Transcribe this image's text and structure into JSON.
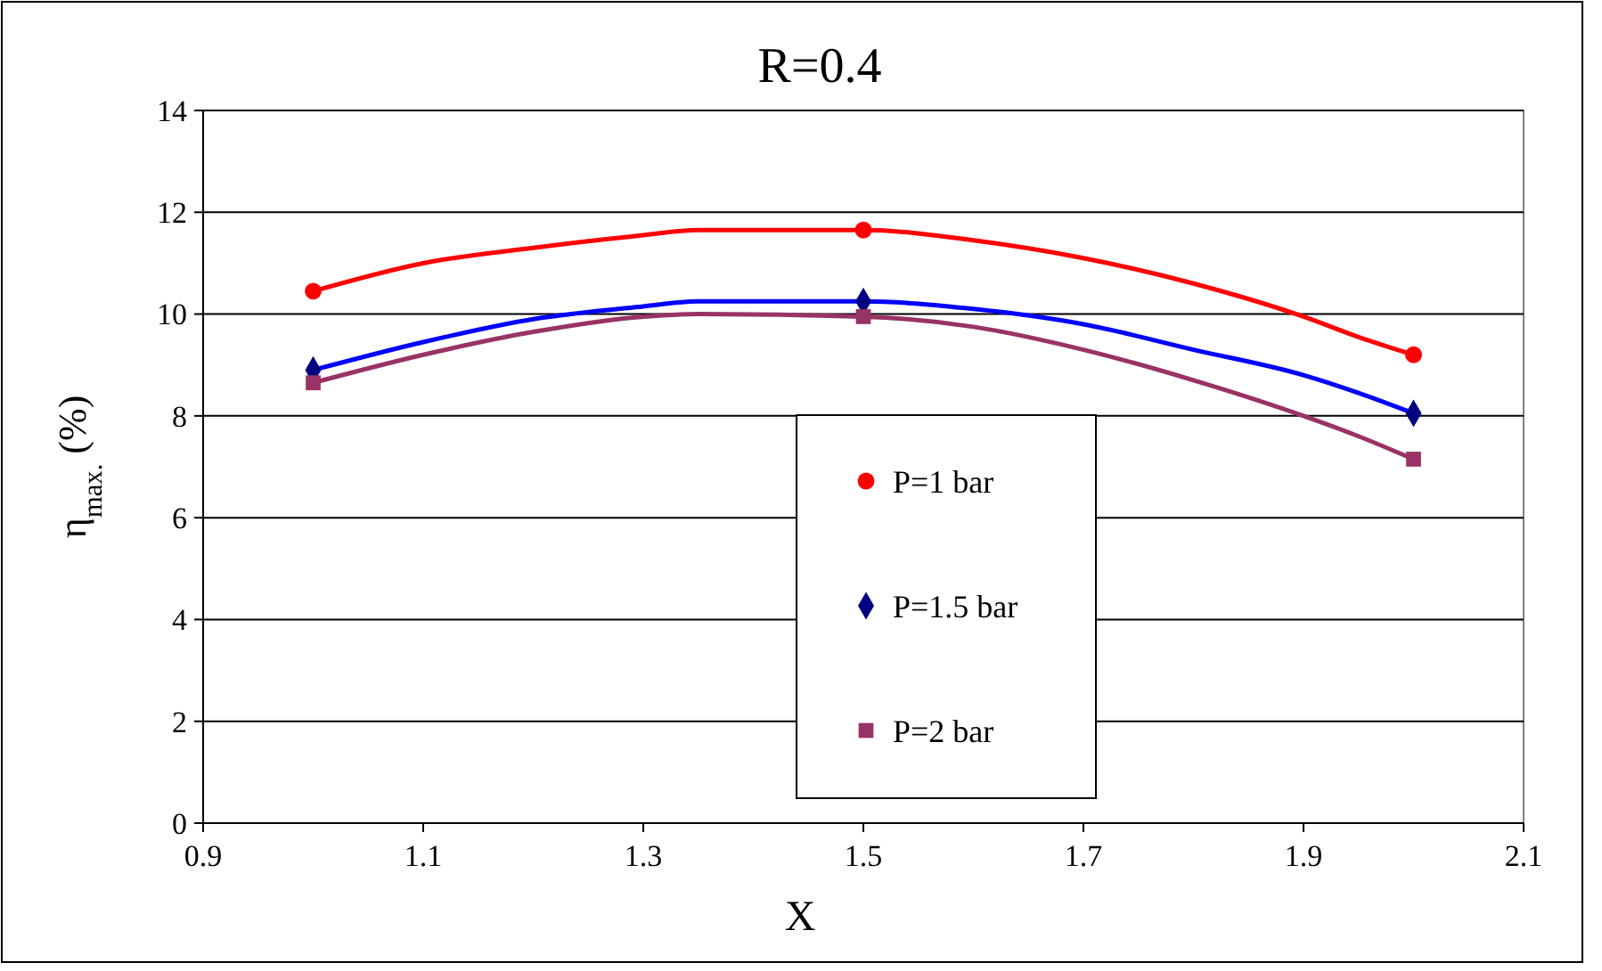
{
  "chart_data": {
    "type": "line",
    "title": "R=0.4",
    "xlabel": "X",
    "ylabel": "η$_{max.}$ (%)",
    "xlim": [
      0.9,
      2.1
    ],
    "xticks": [
      0.9,
      1.1,
      1.3,
      1.5,
      1.7,
      1.9,
      2.1
    ],
    "ylim": [
      0,
      14
    ],
    "yticks": [
      0,
      2,
      4,
      6,
      8,
      10,
      12,
      14
    ],
    "grid": "y",
    "legend": "bottom",
    "line_style": "solid",
    "series": [
      {
        "type": "line",
        "color": "#ff0000",
        "x": [
          1.0,
          1.1,
          1.2,
          1.3,
          1.35,
          1.5,
          1.6,
          1.7,
          1.8,
          1.9,
          1.95,
          2.0
        ],
        "values": [
          10.45,
          11.0,
          11.3,
          11.55,
          11.65,
          11.65,
          11.45,
          11.1,
          10.6,
          9.95,
          9.55,
          9.2
        ]
      },
      {
        "type": "line",
        "color": "#0000ff",
        "x": [
          1.0,
          1.1,
          1.2,
          1.3,
          1.35,
          1.5,
          1.6,
          1.7,
          1.8,
          1.9,
          1.95,
          2.0
        ],
        "values": [
          8.9,
          9.45,
          9.9,
          10.15,
          10.25,
          10.25,
          10.1,
          9.8,
          9.3,
          8.8,
          8.45,
          8.05
        ]
      },
      {
        "type": "line",
        "color": "#993366",
        "x": [
          1.0,
          1.1,
          1.2,
          1.3,
          1.35,
          1.5,
          1.6,
          1.7,
          1.8,
          1.9,
          1.95,
          2.0
        ],
        "values": [
          8.65,
          9.2,
          9.65,
          9.95,
          10.0,
          9.95,
          9.75,
          9.3,
          8.7,
          8.0,
          7.6,
          7.15
        ]
      },
      {
        "type": "scatter",
        "name": "P=1 bar",
        "color": "#ff0000",
        "marker": "circle",
        "x": [
          1.0,
          1.5,
          2.0
        ],
        "values": [
          10.45,
          11.65,
          9.2
        ]
      },
      {
        "type": "scatter",
        "name": "P=1.5 bar",
        "color": "#000080",
        "marker": "diamond",
        "x": [
          1.0,
          1.5,
          2.0
        ],
        "values": [
          8.9,
          10.25,
          8.05
        ]
      },
      {
        "type": "scatter",
        "name": "P=2 bar",
        "color": "#993366",
        "marker": "square",
        "x": [
          1.0,
          1.5,
          2.0
        ],
        "values": [
          8.65,
          9.95,
          7.15
        ]
      }
    ]
  }
}
